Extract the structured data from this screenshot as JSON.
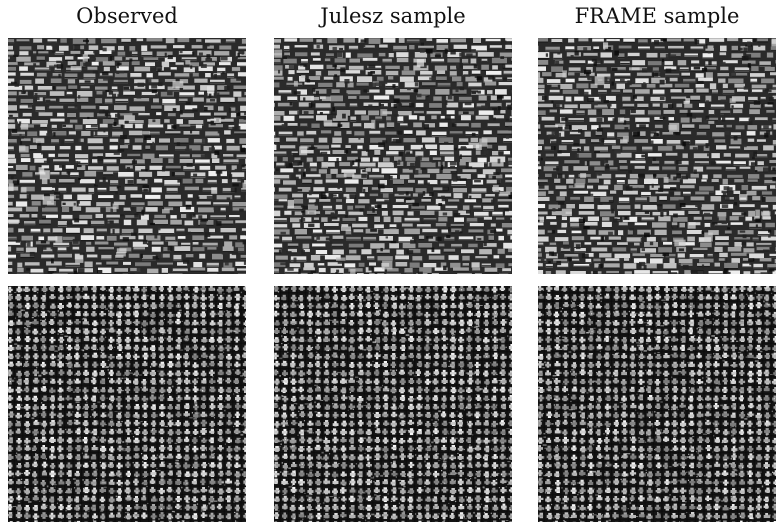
{
  "columns": [
    {
      "title": "Observed"
    },
    {
      "title": "Julesz sample"
    },
    {
      "title": "FRAME sample"
    }
  ],
  "rows": [
    {
      "texture": "irregular-brick-texture"
    },
    {
      "texture": "woven-grid-texture"
    }
  ]
}
